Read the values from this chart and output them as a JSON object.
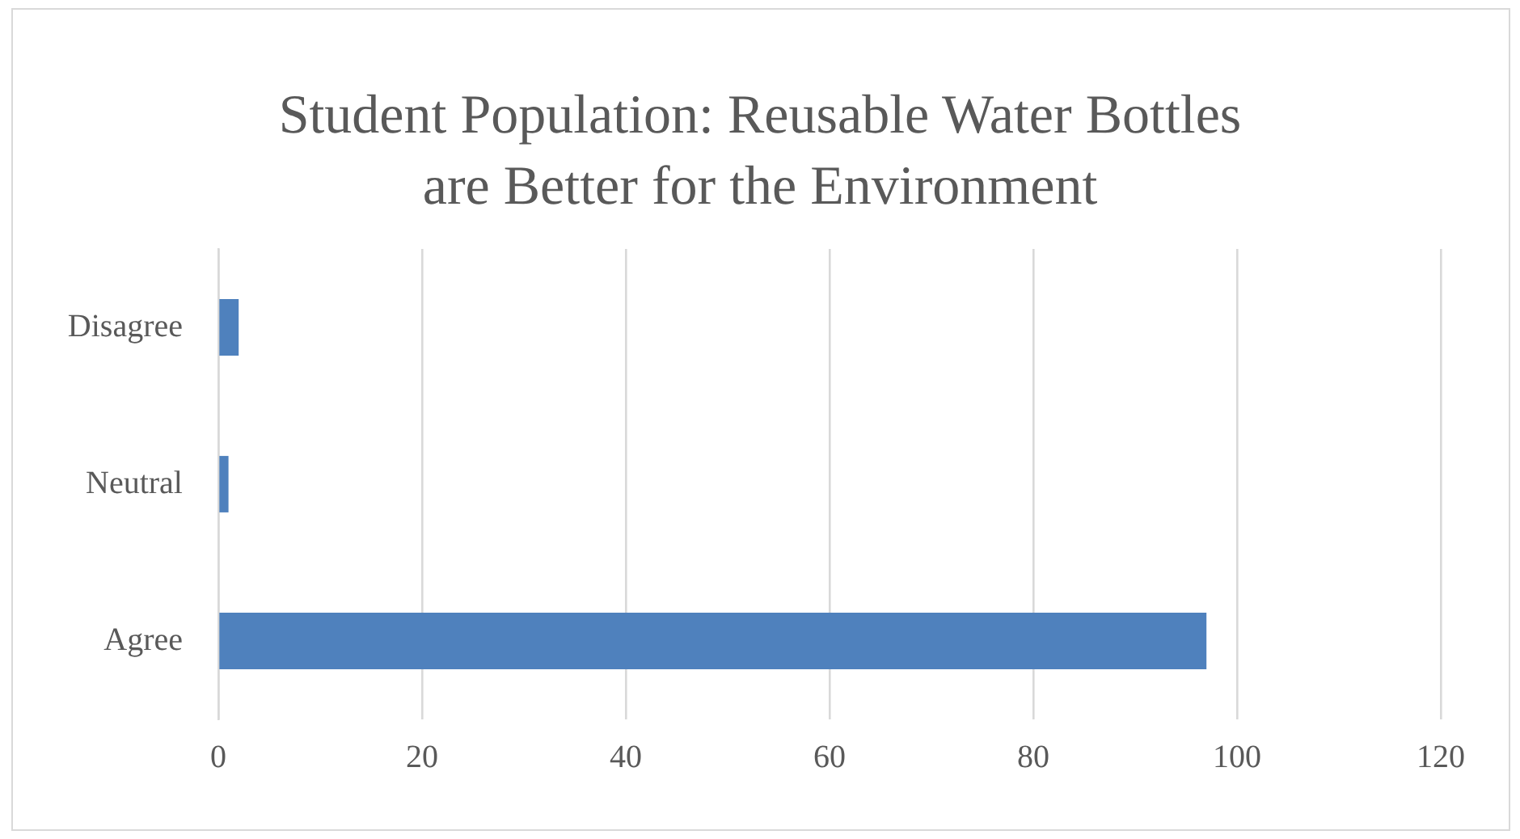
{
  "chart_data": {
    "type": "bar",
    "orientation": "horizontal",
    "title": "Student Population: Reusable Water Bottles are Better for the Environment",
    "categories": [
      "Disagree",
      "Neutral",
      "Agree"
    ],
    "values": [
      2,
      1,
      97
    ],
    "color": "#4f81bd",
    "xlim": [
      0,
      120
    ],
    "xticks": [
      0,
      20,
      40,
      60,
      80,
      100,
      120
    ],
    "grid": "x"
  }
}
